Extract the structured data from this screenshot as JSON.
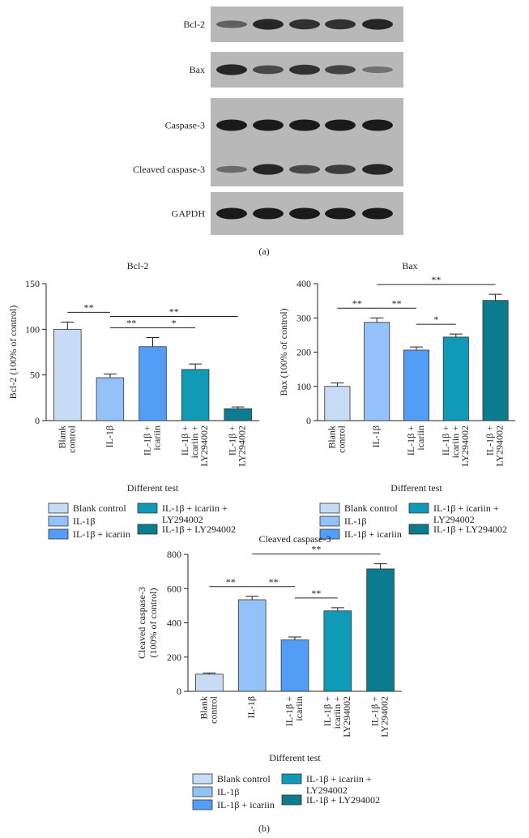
{
  "blot": {
    "rows": [
      "Bcl-2",
      "Bax",
      "Caspase-3",
      "Cleaved caspase-3",
      "GAPDH"
    ],
    "panel_label": "(a)"
  },
  "panel_label": "(b)",
  "chart_data": [
    {
      "type": "bar",
      "title": "Bcl-2",
      "ylabel": [
        "Bcl-2 (100% of control)"
      ],
      "xlabel": "Different test",
      "categories": [
        "Blank control",
        "IL-1β",
        "IL-1β + icariin",
        "IL-1β + icariin + LY294002",
        "IL-1β + LY294002"
      ],
      "colors": [
        "#c6dcf5",
        "#94c1f7",
        "#529ef6",
        "#1199b8",
        "#0b7b8e"
      ],
      "values": [
        100,
        47,
        81,
        56,
        13
      ],
      "errors": [
        8,
        4,
        10,
        6,
        2
      ],
      "ylim": [
        0,
        150
      ],
      "yticks": [
        0,
        50,
        100,
        150
      ],
      "significance": [
        {
          "label": "**",
          "pair": [
            0,
            1
          ]
        },
        {
          "label": "**",
          "pair": [
            1,
            2
          ]
        },
        {
          "label": "**",
          "pair": [
            1,
            4
          ]
        },
        {
          "label": "*",
          "pair": [
            2,
            3
          ]
        }
      ]
    },
    {
      "type": "bar",
      "title": "Bax",
      "ylabel": [
        "Bax (100% of control)"
      ],
      "xlabel": "Different test",
      "categories": [
        "Blank control",
        "IL-1β",
        "IL-1β + icariin",
        "IL-1β + icariin + LY294002",
        "IL-1β + LY294002"
      ],
      "colors": [
        "#c6dcf5",
        "#94c1f7",
        "#529ef6",
        "#1199b8",
        "#0b7b8e"
      ],
      "values": [
        100,
        287,
        206,
        244,
        351
      ],
      "errors": [
        10,
        13,
        9,
        9,
        18
      ],
      "ylim": [
        0,
        400
      ],
      "yticks": [
        0,
        100,
        200,
        300,
        400
      ],
      "significance": [
        {
          "label": "**",
          "pair": [
            0,
            1
          ]
        },
        {
          "label": "**",
          "pair": [
            1,
            2
          ]
        },
        {
          "label": "*",
          "pair": [
            2,
            3
          ]
        },
        {
          "label": "**",
          "pair": [
            1,
            4
          ]
        }
      ]
    },
    {
      "type": "bar",
      "title": "Cleaved caspase-3",
      "ylabel": [
        "Cleaved caspase-3",
        "(100% of control)"
      ],
      "xlabel": "Different test",
      "categories": [
        "Blank control",
        "IL-1β",
        "IL-1β + icariin",
        "IL-1β + icariin + LY294002",
        "IL-1β + LY294002"
      ],
      "colors": [
        "#c6dcf5",
        "#94c1f7",
        "#529ef6",
        "#1199b8",
        "#0b7b8e"
      ],
      "values": [
        100,
        535,
        300,
        470,
        715
      ],
      "errors": [
        7,
        20,
        17,
        18,
        30
      ],
      "ylim": [
        0,
        800
      ],
      "yticks": [
        0,
        200,
        400,
        600,
        800
      ],
      "significance": [
        {
          "label": "**",
          "pair": [
            0,
            1
          ]
        },
        {
          "label": "**",
          "pair": [
            1,
            2
          ]
        },
        {
          "label": "**",
          "pair": [
            2,
            3
          ]
        },
        {
          "label": "**",
          "pair": [
            1,
            4
          ]
        }
      ]
    }
  ]
}
